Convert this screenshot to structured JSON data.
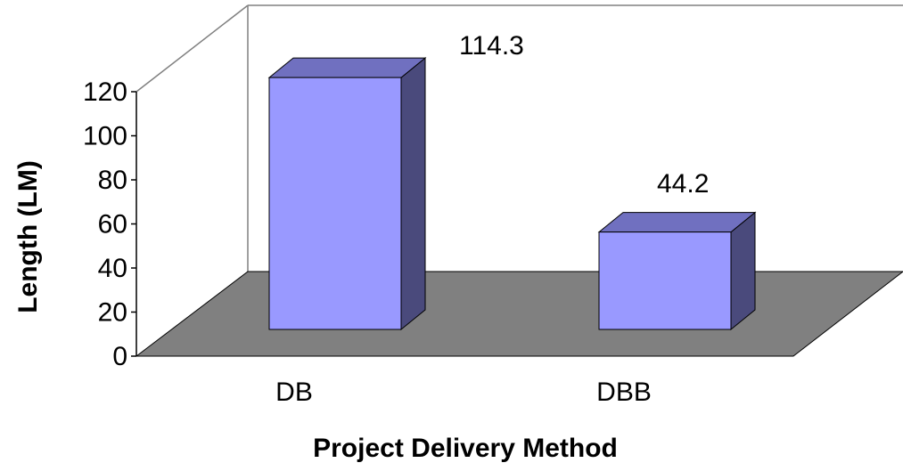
{
  "chart_data": {
    "type": "bar",
    "categories": [
      "DB",
      "DBB"
    ],
    "values": [
      114.3,
      44.2
    ],
    "data_labels": [
      "114.3",
      "44.2"
    ],
    "xlabel": "Project Delivery Method",
    "ylabel": "Length (LM)",
    "ylim": [
      0,
      120
    ],
    "yticks": [
      0,
      20,
      40,
      60,
      80,
      100,
      120
    ],
    "ytick_labels": [
      "0",
      "20",
      "40",
      "60",
      "80",
      "100",
      "120"
    ],
    "grid": false,
    "legend": "none",
    "style": "3d-column",
    "colors": {
      "bar_front": "#9999ff",
      "bar_top": "#7070c0",
      "bar_side": "#4a4a7c",
      "floor": "#808080"
    }
  }
}
